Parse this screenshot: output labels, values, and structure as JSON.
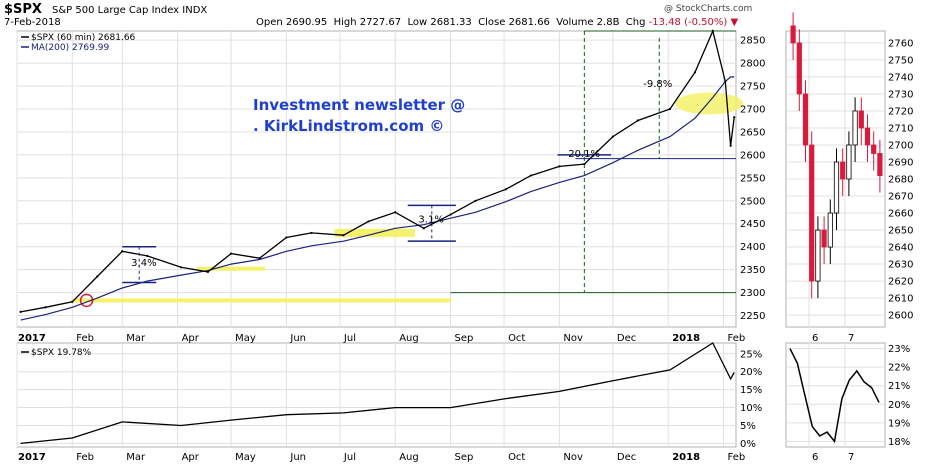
{
  "header": {
    "symbol": "$SPX",
    "name": "S&P 500 Large Cap Index",
    "exchange": "INDX",
    "date": "7-Feb-2018",
    "copyright": "@ StockCharts.com",
    "open_label": "Open",
    "open": "2690.95",
    "high_label": "High",
    "high": "2727.67",
    "low_label": "Low",
    "low": "2681.33",
    "close_label": "Close",
    "close": "2681.66",
    "volume_label": "Volume",
    "volume": "2.8B",
    "chg_label": "Chg",
    "chg": "-13.48 (-0.50%)"
  },
  "legend": {
    "price": "$SPX (60 min) 2681.66",
    "ma": "MA(200) 2769.99",
    "lower": "$SPX 19.78%"
  },
  "ad": {
    "line1": "Investment newsletter @",
    "line2": ".  KirkLindstrom.com ©"
  },
  "annotations": {
    "a1": "3.4%",
    "a2": "3.1%",
    "a3": "20.1%",
    "a4": "-9.8%"
  },
  "colors": {
    "price": "#000000",
    "ma": "#1a237e",
    "up": "#ffffff",
    "down": "#d81b3c",
    "highlight": "#f5f26a",
    "guide": "#1b5e20",
    "accent": "#1f3fd1"
  },
  "chart_data": [
    {
      "type": "line",
      "title": "$SPX (60 min)",
      "x": [
        "2017-01-03",
        "2017-01-17",
        "2017-02-01",
        "2017-02-15",
        "2017-03-01",
        "2017-03-15",
        "2017-04-03",
        "2017-04-18",
        "2017-05-01",
        "2017-05-17",
        "2017-06-01",
        "2017-06-15",
        "2017-07-03",
        "2017-07-17",
        "2017-08-01",
        "2017-08-17",
        "2017-09-01",
        "2017-09-15",
        "2017-10-02",
        "2017-10-16",
        "2017-11-01",
        "2017-11-15",
        "2017-12-01",
        "2017-12-15",
        "2018-01-02",
        "2018-01-16",
        "2018-01-26",
        "2018-02-02",
        "2018-02-05",
        "2018-02-07"
      ],
      "series": [
        {
          "name": "$SPX (60 min)",
          "values": [
            2258,
            2268,
            2280,
            2335,
            2390,
            2380,
            2355,
            2345,
            2385,
            2375,
            2420,
            2430,
            2425,
            2455,
            2475,
            2440,
            2470,
            2500,
            2525,
            2555,
            2575,
            2580,
            2640,
            2675,
            2700,
            2780,
            2870,
            2760,
            2620,
            2682
          ]
        },
        {
          "name": "MA(200)",
          "values": [
            2240,
            2252,
            2268,
            2288,
            2310,
            2325,
            2338,
            2348,
            2362,
            2372,
            2390,
            2402,
            2412,
            2425,
            2440,
            2448,
            2462,
            2475,
            2498,
            2520,
            2540,
            2555,
            2583,
            2610,
            2640,
            2680,
            2725,
            2760,
            2770,
            2770
          ]
        }
      ],
      "xticks": [
        "2017",
        "Feb",
        "Mar",
        "Apr",
        "May",
        "Jun",
        "Jul",
        "Aug",
        "Sep",
        "Oct",
        "Nov",
        "Dec",
        "2018",
        "Feb"
      ],
      "yticks": [
        2250,
        2300,
        2350,
        2400,
        2450,
        2500,
        2550,
        2600,
        2650,
        2700,
        2750,
        2800,
        2850
      ],
      "ylim": [
        2225,
        2870
      ]
    },
    {
      "type": "line",
      "title": "$SPX %",
      "x": [
        "2017-01-03",
        "2017-02-01",
        "2017-03-01",
        "2017-04-03",
        "2017-05-01",
        "2017-06-01",
        "2017-07-03",
        "2017-08-01",
        "2017-09-01",
        "2017-10-02",
        "2017-11-01",
        "2017-12-01",
        "2018-01-02",
        "2018-01-26",
        "2018-02-05",
        "2018-02-07"
      ],
      "series": [
        {
          "name": "$SPX",
          "values": [
            0,
            1.5,
            6,
            5,
            6.5,
            8,
            8.5,
            10,
            10,
            12.5,
            14.5,
            17.5,
            20.5,
            28,
            18,
            19.78
          ]
        }
      ],
      "yticks": [
        "0%",
        "5%",
        "10%",
        "15%",
        "20%",
        "25%"
      ],
      "ylim": [
        -1,
        28
      ]
    },
    {
      "type": "bar",
      "title": "$SPX intraday",
      "categories": [
        "6a",
        "6b",
        "6c",
        "6d",
        "6e",
        "6f",
        "6g",
        "6h",
        "7a",
        "7b",
        "7c",
        "7d",
        "7e",
        "7f",
        "7g"
      ],
      "values": [
        2760,
        2730,
        2700,
        2620,
        2650,
        2640,
        2660,
        2690,
        2680,
        2700,
        2720,
        2710,
        2700,
        2695,
        2682
      ],
      "xticks": [
        "6",
        "7"
      ],
      "yticks": [
        2600,
        2610,
        2620,
        2630,
        2640,
        2650,
        2660,
        2670,
        2680,
        2690,
        2700,
        2710,
        2720,
        2730,
        2740,
        2750,
        2760
      ],
      "ylim": [
        2593,
        2767
      ]
    },
    {
      "type": "line",
      "title": "$SPX % intraday",
      "x": [
        "6a",
        "6b",
        "6c",
        "6d",
        "6e",
        "6f",
        "6g",
        "7a",
        "7b",
        "7c",
        "7d",
        "7e",
        "7f"
      ],
      "series": [
        {
          "name": "$SPX",
          "values": [
            23,
            22.2,
            20.5,
            18.8,
            18.3,
            18.5,
            18,
            20.3,
            21.3,
            21.8,
            21.2,
            20.9,
            20.1
          ]
        }
      ],
      "xticks": [
        "6",
        "7"
      ],
      "yticks": [
        "18%",
        "19%",
        "20%",
        "21%",
        "22%",
        "23%"
      ],
      "ylim": [
        17.7,
        23.3
      ]
    }
  ]
}
